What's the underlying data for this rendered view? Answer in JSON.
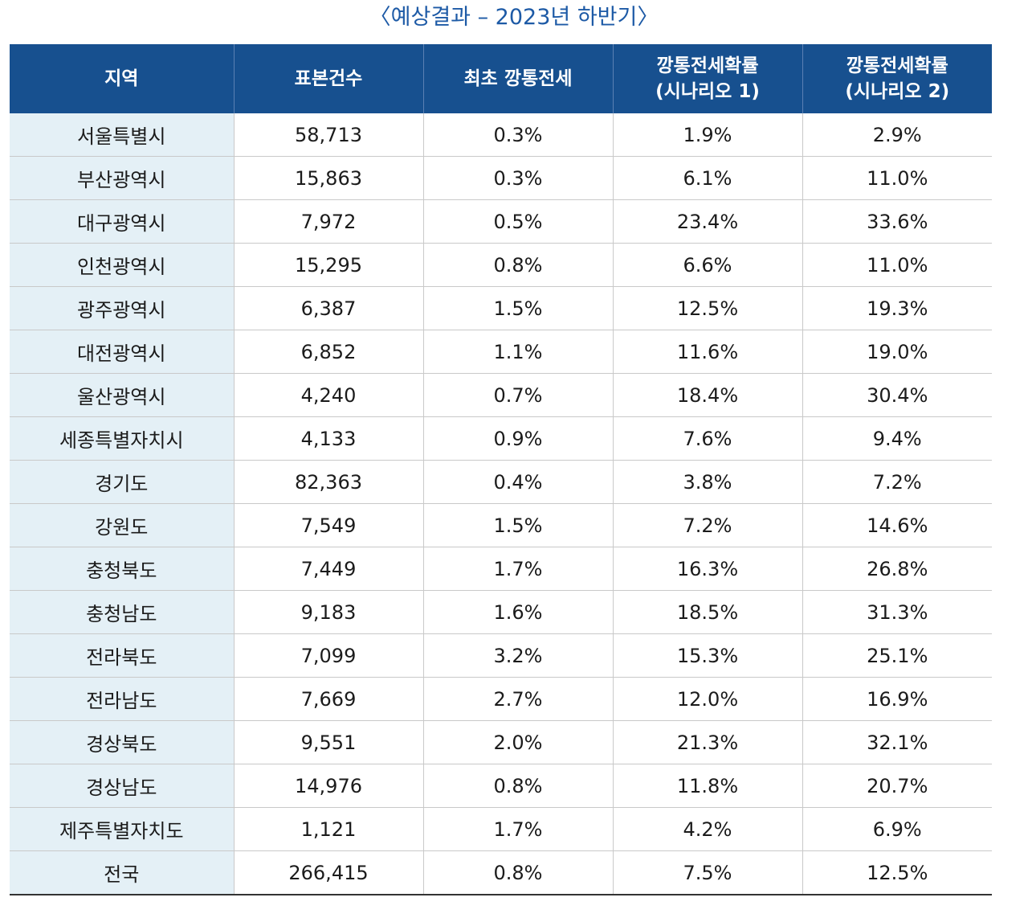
{
  "title": "〈예상결과 – 2023년 하반기〉",
  "headers": [
    {
      "line1": "지역",
      "line2": ""
    },
    {
      "line1": "표본건수",
      "line2": ""
    },
    {
      "line1": "최초 깡통전세",
      "line2": ""
    },
    {
      "line1": "깡통전세확률",
      "line2": "(시나리오 1)"
    },
    {
      "line1": "깡통전세확률",
      "line2": "(시나리오 2)"
    }
  ],
  "rows": [
    [
      "서울특별시",
      "58,713",
      "0.3%",
      "1.9%",
      "2.9%"
    ],
    [
      "부산광역시",
      "15,863",
      "0.3%",
      "6.1%",
      "11.0%"
    ],
    [
      "대구광역시",
      "7,972",
      "0.5%",
      "23.4%",
      "33.6%"
    ],
    [
      "인천광역시",
      "15,295",
      "0.8%",
      "6.6%",
      "11.0%"
    ],
    [
      "광주광역시",
      "6,387",
      "1.5%",
      "12.5%",
      "19.3%"
    ],
    [
      "대전광역시",
      "6,852",
      "1.1%",
      "11.6%",
      "19.0%"
    ],
    [
      "울산광역시",
      "4,240",
      "0.7%",
      "18.4%",
      "30.4%"
    ],
    [
      "세종특별자치시",
      "4,133",
      "0.9%",
      "7.6%",
      "9.4%"
    ],
    [
      "경기도",
      "82,363",
      "0.4%",
      "3.8%",
      "7.2%"
    ],
    [
      "강원도",
      "7,549",
      "1.5%",
      "7.2%",
      "14.6%"
    ],
    [
      "충청북도",
      "7,449",
      "1.7%",
      "16.3%",
      "26.8%"
    ],
    [
      "충청남도",
      "9,183",
      "1.6%",
      "18.5%",
      "31.3%"
    ],
    [
      "전라북도",
      "7,099",
      "3.2%",
      "15.3%",
      "25.1%"
    ],
    [
      "전라남도",
      "7,669",
      "2.7%",
      "12.0%",
      "16.9%"
    ],
    [
      "경상북도",
      "9,551",
      "2.0%",
      "21.3%",
      "32.1%"
    ],
    [
      "경상남도",
      "14,976",
      "0.8%",
      "11.8%",
      "20.7%"
    ],
    [
      "제주특별자치도",
      "1,121",
      "1.7%",
      "4.2%",
      "6.9%"
    ],
    [
      "전국",
      "266,415",
      "0.8%",
      "7.5%",
      "12.5%"
    ]
  ]
}
